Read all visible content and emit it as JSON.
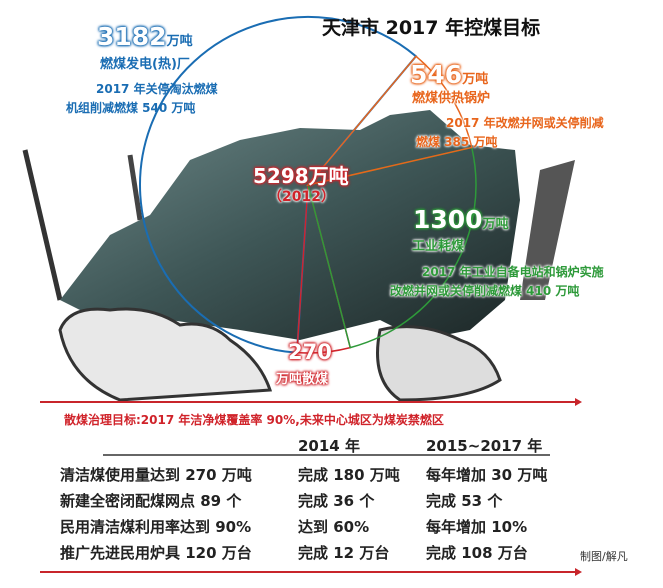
{
  "title": "天津市 2017 年控煤目标",
  "chart_data": {
    "type": "pie",
    "title": "天津市 2017 年控煤目标",
    "total": {
      "value": 5298,
      "label": "5298万吨",
      "year": "（2012）"
    },
    "slices": [
      {
        "name": "燃煤发电(热)厂",
        "value": 3182,
        "value_label": "3182",
        "unit": "万吨",
        "color": "#1a6db3",
        "note": [
          "2017 年关停淘汰燃煤",
          "机组削减燃煤 540 万吨"
        ]
      },
      {
        "name": "散煤",
        "value": 270,
        "value_label": "270",
        "unit": "万吨散煤",
        "color": "#d0232a",
        "note": []
      },
      {
        "name": "工业耗煤",
        "value": 1300,
        "value_label": "1300",
        "unit": "万吨",
        "color": "#2e9a3a",
        "note": [
          "2017 年工业自备电站和锅炉实施",
          "改燃并网或关停削减燃煤 410 万吨"
        ]
      },
      {
        "name": "燃煤供热锅炉",
        "value": 546,
        "value_label": "546",
        "unit": "万吨",
        "color": "#e8651c",
        "note": [
          "2017 年改燃并网或关停削减",
          "燃煤 385 万吨"
        ]
      }
    ]
  },
  "loose_coal_goal": "散煤治理目标:2017 年洁净煤覆盖率 90%,未来中心城区为煤炭禁燃区",
  "table": {
    "headers": [
      "2014 年",
      "2015~2017 年"
    ],
    "rows": [
      [
        "清洁煤使用量达到 270 万吨",
        "完成 180 万吨",
        "每年增加 30 万吨"
      ],
      [
        "新建全密闭配煤网点 89 个",
        "完成 36 个",
        "完成 53 个"
      ],
      [
        "民用清洁煤利用率达到 90%",
        "达到 60%",
        "每年增加 10%"
      ],
      [
        "推广先进民用炉具 120 万台",
        "完成 12 万台",
        "完成 108 万台"
      ]
    ]
  },
  "credit": "制图/解凡"
}
